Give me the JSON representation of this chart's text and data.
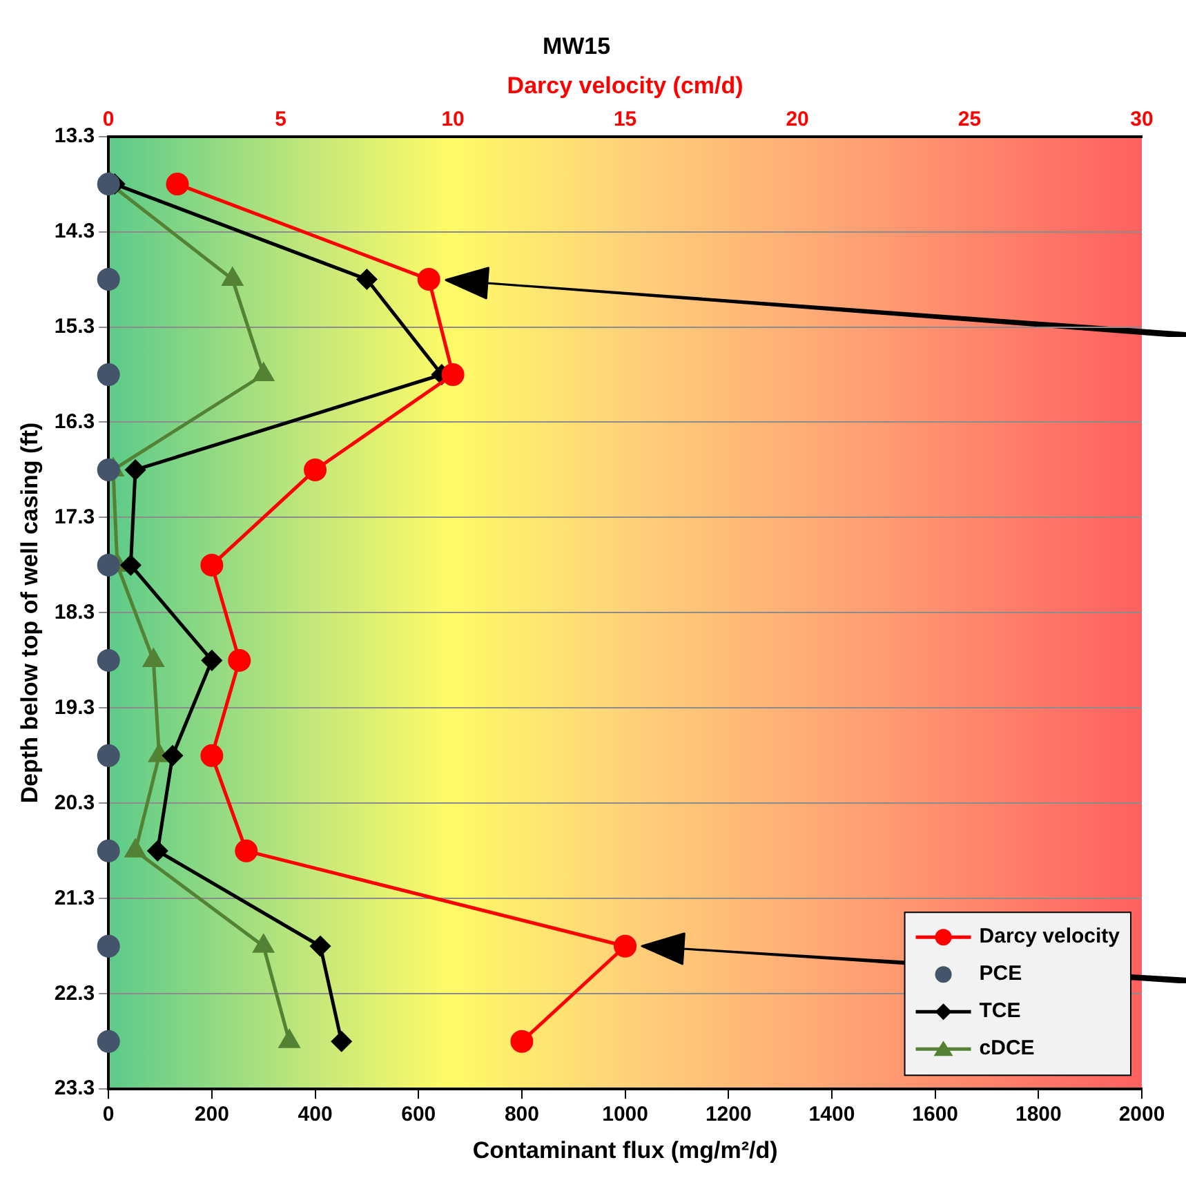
{
  "chart_data": {
    "type": "line",
    "title": "MW15",
    "xlabel": "Contaminant flux (mg/m²/d)",
    "x2label": "Darcy velocity (cm/d)",
    "ylabel": "Depth below top of well casing (ft)",
    "xlim": [
      0,
      2000
    ],
    "xticks": [
      0,
      200,
      400,
      600,
      800,
      1000,
      1200,
      1400,
      1600,
      1800,
      2000
    ],
    "x2lim": [
      0,
      30
    ],
    "x2ticks": [
      0,
      5,
      10,
      15,
      20,
      25,
      30
    ],
    "ylim": [
      23.3,
      13.3
    ],
    "yticks": [
      13.3,
      14.3,
      15.3,
      16.3,
      17.3,
      18.3,
      19.3,
      20.3,
      21.3,
      22.3,
      23.3
    ],
    "grid": "y",
    "legend": "bottom right",
    "line_style": "solid",
    "series": [
      {
        "name": "Darcy velocity",
        "color": "#ff0000",
        "axis": "x2",
        "marker": "circle",
        "x": [
          2.0,
          9.3,
          10.0,
          6.0,
          3.0,
          3.8,
          3.0,
          4.0,
          15.0,
          12.0
        ],
        "values": [
          13.8,
          14.8,
          15.8,
          16.8,
          17.8,
          18.8,
          19.8,
          20.8,
          21.8,
          22.8
        ]
      },
      {
        "name": "PCE",
        "type": "scatter",
        "color": "#44546a",
        "marker": "circle",
        "x": [
          0,
          0,
          0,
          0,
          0,
          0,
          0,
          0,
          0,
          0
        ],
        "values": [
          13.8,
          14.8,
          15.8,
          16.8,
          17.8,
          18.8,
          19.8,
          20.8,
          21.8,
          22.8
        ]
      },
      {
        "name": "TCE",
        "color": "#000000",
        "marker": "diamond",
        "x": [
          12,
          500,
          645,
          52,
          43,
          200,
          124,
          95,
          410,
          451
        ],
        "values": [
          13.8,
          14.8,
          15.8,
          16.8,
          17.8,
          18.8,
          19.8,
          20.8,
          21.8,
          22.8
        ]
      },
      {
        "name": "cDCE",
        "color": "#548235",
        "marker": "triangle",
        "x": [
          3,
          240,
          300,
          9,
          17,
          87,
          98,
          52,
          300,
          350
        ],
        "values": [
          13.8,
          14.8,
          15.8,
          16.8,
          17.8,
          18.8,
          19.8,
          20.8,
          21.8,
          22.8
        ]
      }
    ]
  }
}
